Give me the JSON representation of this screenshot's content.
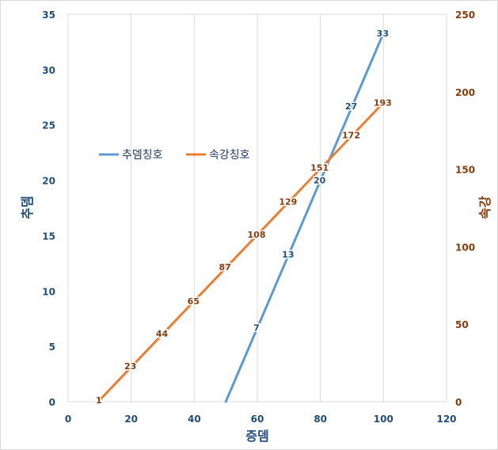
{
  "chart_data": {
    "type": "line",
    "xlabel": "증뎀",
    "ylabel_left": "추뎀",
    "ylabel_right": "속강",
    "xlim": [
      0,
      120
    ],
    "ylim_left": [
      0,
      35
    ],
    "ylim_right": [
      0,
      250
    ],
    "x_ticks": [
      "0",
      "20",
      "40",
      "60",
      "80",
      "100",
      "120"
    ],
    "y_left_ticks": [
      "0",
      "5",
      "10",
      "15",
      "20",
      "25",
      "30",
      "35"
    ],
    "y_right_ticks": [
      "0",
      "50",
      "100",
      "150",
      "200",
      "250"
    ],
    "grid": "vertical",
    "legend_position": "middle-left",
    "series": [
      {
        "name": "추뎀칭호",
        "axis": "left",
        "color": "#5b9bd5",
        "x": [
          50,
          100
        ],
        "y": [
          0,
          33.3
        ],
        "labels": [
          {
            "x": 60,
            "y": 6.7,
            "text": "7"
          },
          {
            "x": 70,
            "y": 13.3,
            "text": "13"
          },
          {
            "x": 80,
            "y": 20,
            "text": "20"
          },
          {
            "x": 90,
            "y": 26.7,
            "text": "27"
          },
          {
            "x": 100,
            "y": 33.3,
            "text": "33"
          }
        ]
      },
      {
        "name": "속강칭호",
        "axis": "right",
        "color": "#ed7d31",
        "x": [
          10,
          100
        ],
        "y": [
          1,
          193
        ],
        "labels": [
          {
            "x": 10,
            "y": 1,
            "text": "1"
          },
          {
            "x": 20,
            "y": 23,
            "text": "23"
          },
          {
            "x": 30,
            "y": 44,
            "text": "44"
          },
          {
            "x": 40,
            "y": 65,
            "text": "65"
          },
          {
            "x": 50,
            "y": 87,
            "text": "87"
          },
          {
            "x": 60,
            "y": 108,
            "text": "108"
          },
          {
            "x": 70,
            "y": 129,
            "text": "129"
          },
          {
            "x": 80,
            "y": 151,
            "text": "151"
          },
          {
            "x": 90,
            "y": 172,
            "text": "172"
          },
          {
            "x": 100,
            "y": 193,
            "text": "193"
          }
        ]
      }
    ]
  },
  "colors": {
    "left_axis": "#1f4e79",
    "right_axis": "#843c0c",
    "x_axis": "#1f4e79",
    "grid": "#d9d9d9"
  }
}
